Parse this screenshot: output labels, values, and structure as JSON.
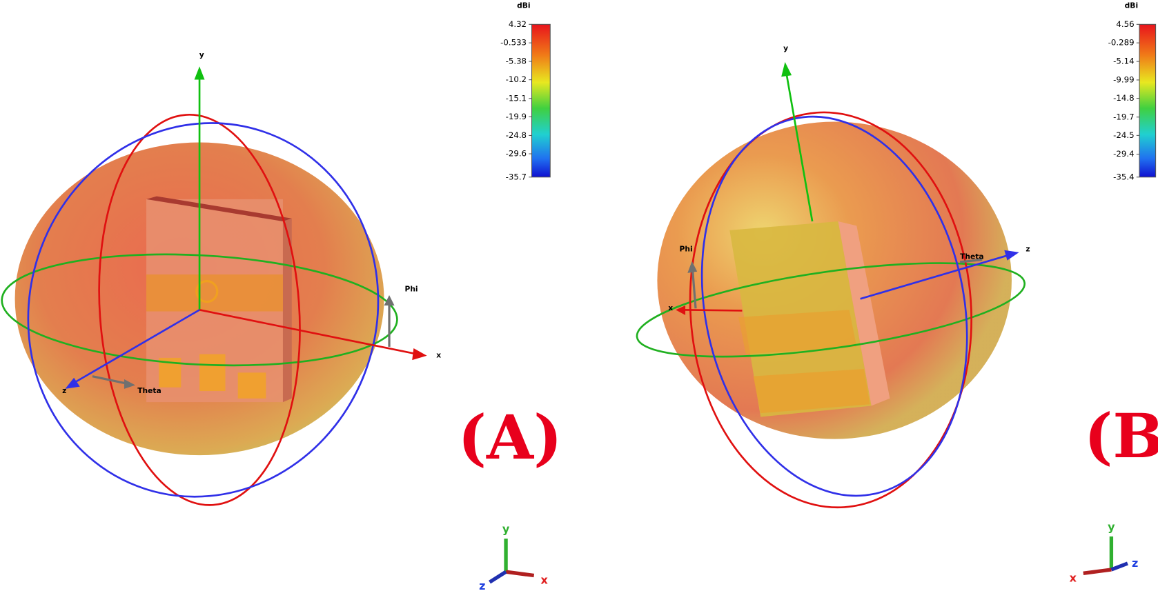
{
  "panels": [
    {
      "label": "(A)",
      "colorbar": {
        "unit": "dBi",
        "ticks": [
          4.32,
          -0.533,
          -5.38,
          -10.2,
          -15.1,
          -19.9,
          -24.8,
          -29.6,
          -35.7
        ]
      },
      "axes": {
        "x": "x",
        "y": "y",
        "z": "z"
      },
      "angles": {
        "phi": "Phi",
        "theta": "Theta"
      },
      "triad": {
        "x": "x",
        "y": "y",
        "z": "z"
      }
    },
    {
      "label": "(B)",
      "colorbar": {
        "unit": "dBi",
        "ticks": [
          4.56,
          -0.289,
          -5.14,
          -9.99,
          -14.8,
          -19.7,
          -24.5,
          -29.4,
          -35.4
        ]
      },
      "axes": {
        "x": "x",
        "y": "y",
        "z": "z"
      },
      "angles": {
        "phi": "Phi",
        "theta": "Theta"
      },
      "triad": {
        "x": "x",
        "y": "y",
        "z": "z"
      }
    }
  ]
}
